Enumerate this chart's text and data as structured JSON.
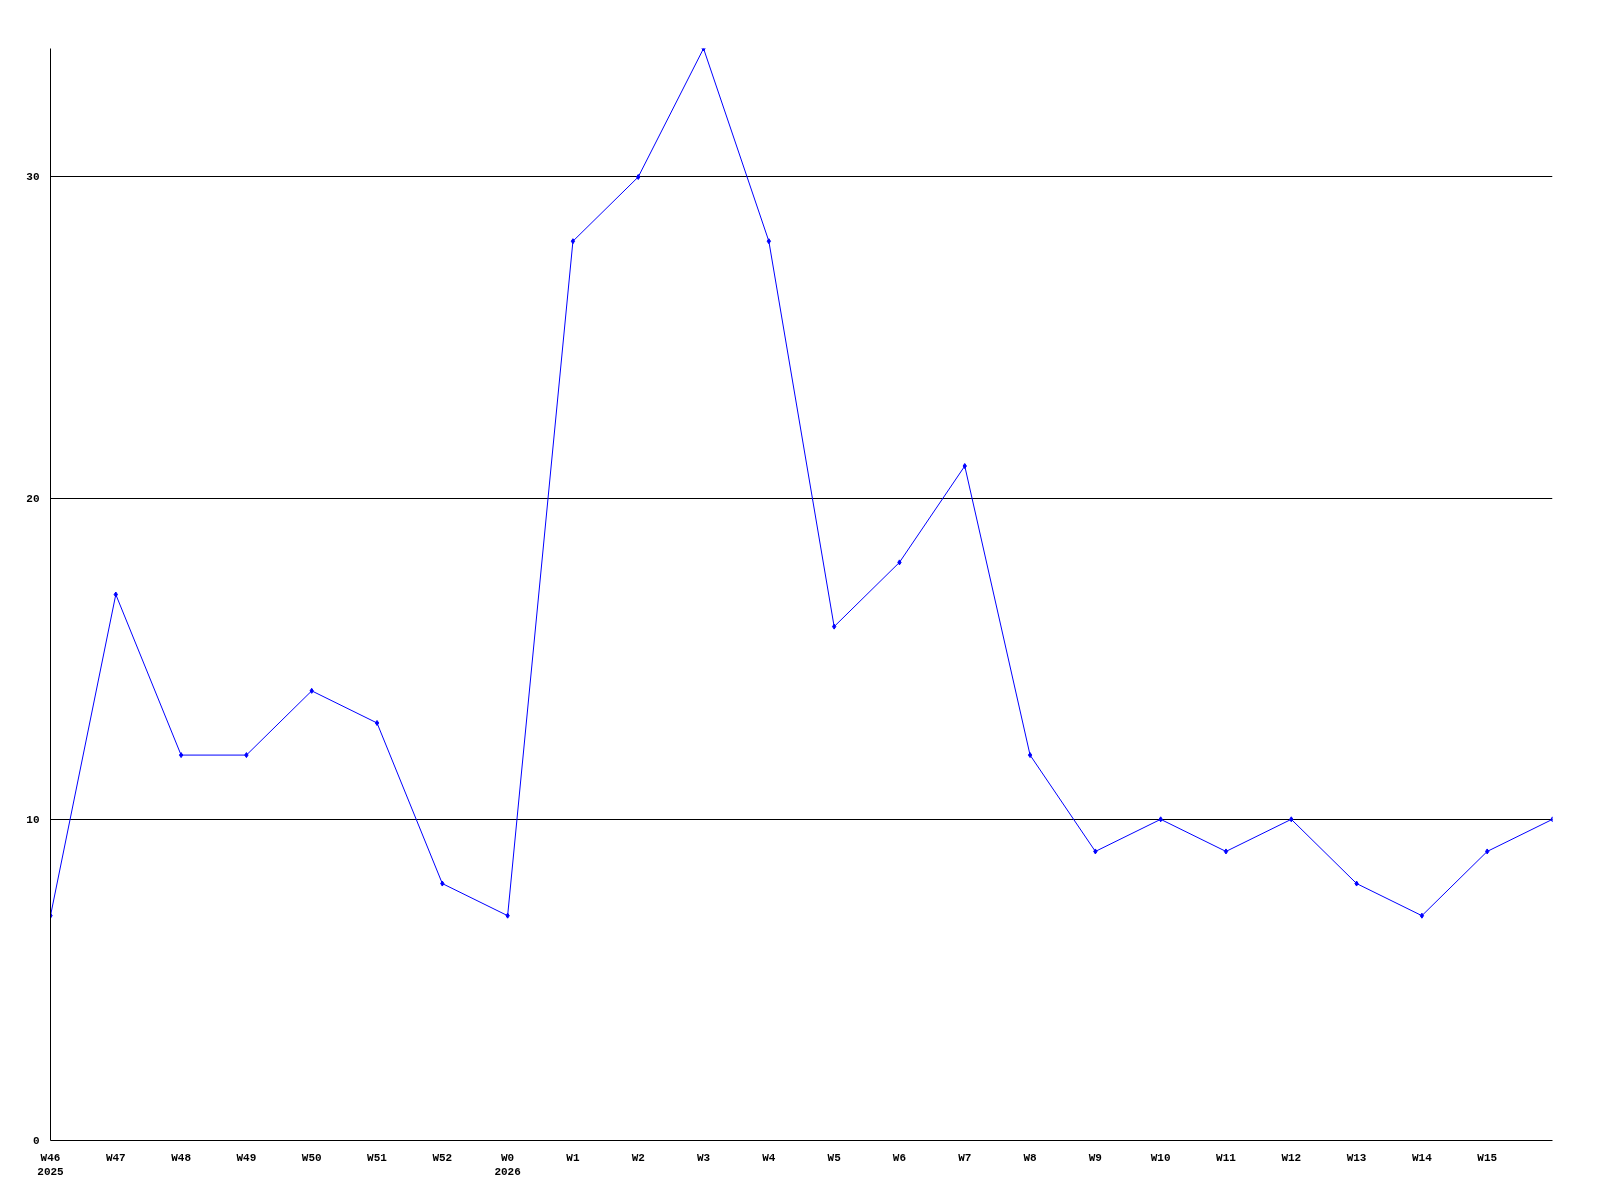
{
  "chart_data": {
    "type": "line",
    "categories": [
      "W46\n2025",
      "W47",
      "W48",
      "W49",
      "W50",
      "W51",
      "W52",
      "W0\n2026",
      "W1",
      "W2",
      "W3",
      "W4",
      "W5",
      "W6",
      "W7",
      "W8",
      "W9",
      "W10",
      "W11",
      "W12",
      "W13",
      "W14",
      "W15",
      null
    ],
    "series": [
      {
        "color": "#0000ff",
        "values": [
          7,
          17,
          12,
          12,
          14,
          13,
          8,
          7,
          28,
          30,
          34,
          28,
          16,
          18,
          21,
          12,
          9,
          10,
          9,
          10,
          8,
          7,
          9,
          10
        ]
      }
    ],
    "ylim": [
      0,
      34
    ],
    "yticks": [
      0,
      10,
      20,
      30
    ],
    "grid": "y",
    "marker": "diamond",
    "line_style": "solid"
  }
}
